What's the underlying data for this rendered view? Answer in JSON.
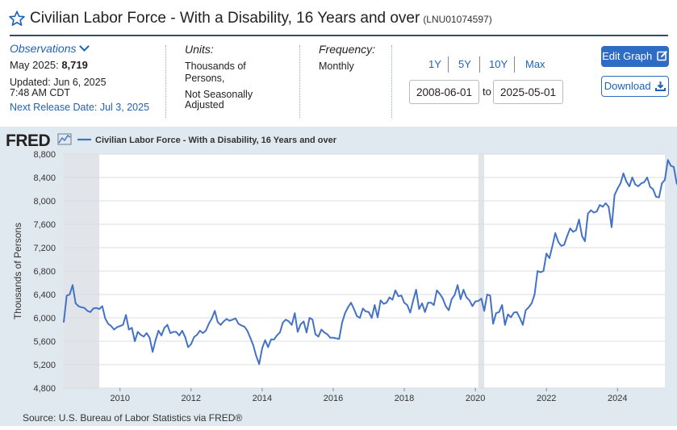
{
  "header": {
    "title": "Civilian Labor Force - With a Disability, 16 Years and over",
    "series_id": "(LNU01074597)"
  },
  "observations": {
    "link": "Observations",
    "latest_label": "May 2025:",
    "latest_value": "8,719",
    "updated_line1": "Updated: Jun 6, 2025",
    "updated_line2": "7:48 AM CDT",
    "next_release": "Next Release Date: Jul 3, 2025"
  },
  "units": {
    "label": "Units:",
    "line1": "Thousands of",
    "line2": "Persons,",
    "line3": "Not Seasonally",
    "line4": "Adjusted"
  },
  "frequency": {
    "label": "Frequency:",
    "value": "Monthly"
  },
  "range": {
    "buttons": [
      "1Y",
      "5Y",
      "10Y",
      "Max"
    ],
    "start": "2008-06-01",
    "to": "to",
    "end": "2025-05-01"
  },
  "actions": {
    "edit": "Edit Graph",
    "download": "Download"
  },
  "logo": "FRED",
  "source": "Source: U.S. Bureau of Labor Statistics via FRED®",
  "colors": {
    "line": "#4572c4",
    "plot_bg": "#ffffff",
    "frame_bg": "#e1e9f0",
    "recession": "#e1e4e8",
    "accent": "#2f6dc5"
  },
  "chart_data": {
    "type": "line",
    "legend": "Civilian Labor Force - With a Disability, 16 Years and over",
    "ylabel": "Thousands of Persons",
    "ylim": [
      4800,
      8800
    ],
    "xlim": [
      2008.417,
      2025.333
    ],
    "yticks": [
      4800,
      5200,
      5600,
      6000,
      6400,
      6800,
      7200,
      7600,
      8000,
      8400,
      8800
    ],
    "ytick_labels": [
      "4,800",
      "5,200",
      "5,600",
      "6,000",
      "6,400",
      "6,800",
      "7,200",
      "7,600",
      "8,000",
      "8,400",
      "8,800"
    ],
    "xticks": [
      2010,
      2012,
      2014,
      2016,
      2018,
      2020,
      2022,
      2024
    ],
    "xtick_labels": [
      "2010",
      "2012",
      "2014",
      "2016",
      "2018",
      "2020",
      "2022",
      "2024"
    ],
    "recessions": [
      [
        2008.417,
        2009.417
      ],
      [
        2020.083,
        2020.25
      ]
    ],
    "grid": "horizontal",
    "start": "2008-06",
    "frequency_months": 1,
    "values": [
      5930,
      6380,
      6400,
      6560,
      6250,
      6200,
      6180,
      6170,
      6120,
      6100,
      6160,
      6170,
      6150,
      6200,
      5990,
      5900,
      5860,
      5800,
      5840,
      5860,
      5880,
      6050,
      5800,
      5830,
      5600,
      5760,
      5710,
      5680,
      5740,
      5660,
      5420,
      5620,
      5780,
      5700,
      5830,
      5880,
      5740,
      5760,
      5760,
      5700,
      5780,
      5670,
      5500,
      5550,
      5670,
      5710,
      5780,
      5740,
      5780,
      5900,
      5990,
      6120,
      5930,
      5880,
      5940,
      5980,
      5950,
      5970,
      5990,
      5900,
      5870,
      5850,
      5780,
      5660,
      5530,
      5350,
      5210,
      5480,
      5620,
      5500,
      5630,
      5630,
      5700,
      5750,
      5920,
      5970,
      5940,
      5880,
      6080,
      5760,
      5890,
      5940,
      5750,
      6000,
      5970,
      5720,
      5680,
      5800,
      5750,
      5720,
      5660,
      5660,
      5650,
      5640,
      5920,
      6080,
      6180,
      6260,
      6150,
      6030,
      6000,
      6160,
      6110,
      6100,
      6000,
      6220,
      6010,
      6300,
      6240,
      6260,
      6350,
      6310,
      6470,
      6370,
      6380,
      6260,
      6220,
      6090,
      6300,
      6480,
      6150,
      6250,
      6100,
      6260,
      6260,
      6220,
      6470,
      6410,
      6330,
      6200,
      6130,
      6320,
      6390,
      6560,
      6320,
      6480,
      6350,
      6300,
      6200,
      6280,
      6290,
      6330,
      6120,
      6400,
      6380,
      5900,
      6080,
      6100,
      6220,
      5880,
      6060,
      6010,
      6090,
      6100,
      6000,
      5880,
      6130,
      6180,
      6250,
      6400,
      6800,
      6780,
      6800,
      7100,
      7020,
      7230,
      7450,
      7300,
      7230,
      7250,
      7400,
      7530,
      7470,
      7500,
      7680,
      7400,
      7310,
      7780,
      7840,
      7800,
      7820,
      7930,
      7900,
      7960,
      7900,
      7550,
      8100,
      8210,
      8300,
      8470,
      8330,
      8250,
      8400,
      8280,
      8250,
      8300,
      8320,
      8400,
      8240,
      8200,
      8070,
      8060,
      8300,
      8360,
      8700,
      8600,
      8580,
      8300,
      8230,
      8490,
      8719
    ]
  }
}
